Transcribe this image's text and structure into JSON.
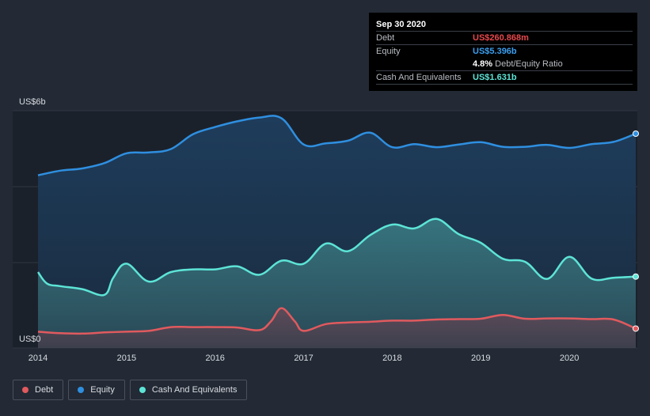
{
  "chart_data": {
    "type": "area",
    "title": "",
    "xlabel": "",
    "ylabel": "",
    "ylim": [
      0,
      6
    ],
    "y_unit": "US$b",
    "y_tick_labels": {
      "top": "US$6b",
      "bottom": "US$0"
    },
    "x_ticks": [
      2014,
      2015,
      2016,
      2017,
      2018,
      2019,
      2020
    ],
    "x_range": [
      2014.0,
      2020.75
    ],
    "series": [
      {
        "name": "Equity",
        "color": "#2f8fe0",
        "x": [
          2014.0,
          2014.25,
          2014.5,
          2014.75,
          2015.0,
          2015.25,
          2015.5,
          2015.75,
          2016.0,
          2016.25,
          2016.5,
          2016.75,
          2017.0,
          2017.25,
          2017.5,
          2017.75,
          2018.0,
          2018.25,
          2018.5,
          2018.75,
          2019.0,
          2019.25,
          2019.5,
          2019.75,
          2020.0,
          2020.25,
          2020.5,
          2020.75
        ],
        "values": [
          4.3,
          4.42,
          4.48,
          4.62,
          4.88,
          4.9,
          4.99,
          5.38,
          5.57,
          5.72,
          5.82,
          5.8,
          5.11,
          5.14,
          5.21,
          5.42,
          5.04,
          5.12,
          5.04,
          5.11,
          5.17,
          5.05,
          5.05,
          5.1,
          5.02,
          5.12,
          5.18,
          5.396
        ]
      },
      {
        "name": "Cash And Equivalents",
        "color": "#5de4d6",
        "x": [
          2014.0,
          2014.1,
          2014.25,
          2014.5,
          2014.75,
          2014.85,
          2015.0,
          2015.25,
          2015.5,
          2015.75,
          2016.0,
          2016.25,
          2016.5,
          2016.75,
          2017.0,
          2017.25,
          2017.5,
          2017.75,
          2018.0,
          2018.25,
          2018.5,
          2018.75,
          2019.0,
          2019.25,
          2019.5,
          2019.75,
          2020.0,
          2020.25,
          2020.5,
          2020.75
        ],
        "values": [
          1.75,
          1.45,
          1.38,
          1.3,
          1.15,
          1.6,
          1.97,
          1.5,
          1.75,
          1.82,
          1.82,
          1.9,
          1.68,
          2.05,
          1.97,
          2.5,
          2.3,
          2.72,
          3.0,
          2.9,
          3.15,
          2.75,
          2.52,
          2.1,
          2.02,
          1.57,
          2.15,
          1.58,
          1.6,
          1.631
        ]
      },
      {
        "name": "Debt",
        "color": "#e05a5e",
        "x": [
          2014.0,
          2014.25,
          2014.5,
          2014.75,
          2015.0,
          2015.25,
          2015.5,
          2015.75,
          2016.0,
          2016.25,
          2016.5,
          2016.63,
          2016.75,
          2016.9,
          2017.0,
          2017.25,
          2017.5,
          2017.75,
          2018.0,
          2018.25,
          2018.5,
          2018.75,
          2019.0,
          2019.25,
          2019.5,
          2019.75,
          2020.0,
          2020.25,
          2020.5,
          2020.75
        ],
        "values": [
          0.18,
          0.14,
          0.13,
          0.16,
          0.18,
          0.2,
          0.3,
          0.3,
          0.3,
          0.29,
          0.22,
          0.45,
          0.8,
          0.45,
          0.2,
          0.38,
          0.42,
          0.44,
          0.47,
          0.47,
          0.5,
          0.51,
          0.52,
          0.62,
          0.52,
          0.53,
          0.53,
          0.51,
          0.5,
          0.260868
        ]
      }
    ]
  },
  "tooltip": {
    "date": "Sep 30 2020",
    "rows": [
      {
        "label": "Debt",
        "value": "US$260.868m",
        "color": "#e8484c"
      },
      {
        "label": "Equity",
        "value": "US$5.396b",
        "color": "#3a9ef0"
      },
      {
        "label": "",
        "value": "4.8%",
        "suffix": "Debt/Equity Ratio",
        "color": "#ffffff"
      },
      {
        "label": "Cash And Equivalents",
        "value": "US$1.631b",
        "color": "#5de4d6"
      }
    ]
  },
  "legend": [
    {
      "label": "Debt",
      "color": "#e05a5e"
    },
    {
      "label": "Equity",
      "color": "#2f8fe0"
    },
    {
      "label": "Cash And Equivalents",
      "color": "#5de4d6"
    }
  ]
}
